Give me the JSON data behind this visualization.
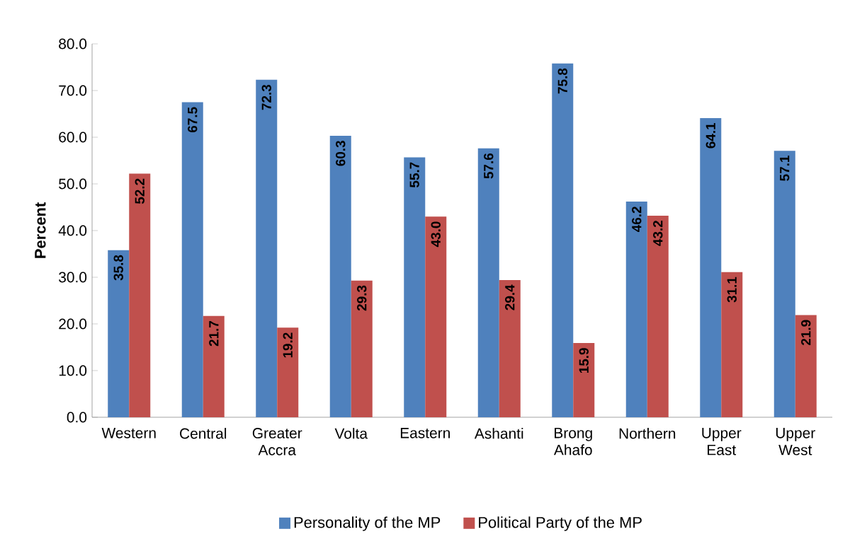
{
  "chart_data": {
    "type": "bar",
    "ylabel": "Percent",
    "categories": [
      "Western",
      "Central",
      "Greater Accra",
      "Volta",
      "Eastern",
      "Ashanti",
      "Brong Ahafo",
      "Northern",
      "Upper East",
      "Upper West"
    ],
    "series": [
      {
        "name": "Personality of the MP",
        "color": "#4f81bd",
        "values": [
          35.8,
          67.5,
          72.3,
          60.3,
          55.7,
          57.6,
          75.8,
          46.2,
          64.1,
          57.1
        ],
        "value_labels": [
          "35.8",
          "67.5",
          "72.3",
          "60.3",
          "55.7",
          "57.6",
          "75.8",
          "46.2",
          "64.1",
          "57.1"
        ]
      },
      {
        "name": "Political Party of the MP",
        "color": "#c0504d",
        "values": [
          52.2,
          21.7,
          19.2,
          29.3,
          43.0,
          29.4,
          15.9,
          43.2,
          31.1,
          21.9
        ],
        "value_labels": [
          "52.2",
          "21.7",
          "19.2",
          "29.3",
          "43.0",
          "29.4",
          "15.9",
          "43.2",
          "31.1",
          "21.9"
        ]
      }
    ],
    "ylim": [
      0,
      80
    ],
    "yticks": [
      {
        "value": 0,
        "label": "0.0"
      },
      {
        "value": 10,
        "label": "10.0"
      },
      {
        "value": 20,
        "label": "20.0"
      },
      {
        "value": 30,
        "label": "30.0"
      },
      {
        "value": 40,
        "label": "40.0"
      },
      {
        "value": 50,
        "label": "50.0"
      },
      {
        "value": 60,
        "label": "60.0"
      },
      {
        "value": 70,
        "label": "70.0"
      },
      {
        "value": 80,
        "label": "80.0"
      }
    ],
    "grid": false,
    "legend": "bottom"
  }
}
